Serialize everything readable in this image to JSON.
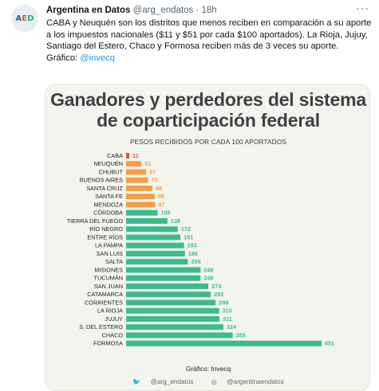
{
  "tweet": {
    "author_name": "Argentina en Datos",
    "author_handle": "@arg_endatos",
    "separator": "·",
    "time": "18h",
    "more_icon": "more-dots-icon",
    "text_body": "CABA y Neuquén son los distritos que menos reciben en comparación a su aporte a los impuestos nacionales ($11 y $51 por cada $100 aportados). La Rioja, Jujuy, Santiago del Estero, Chaco y Formosa reciben más de 3 veces su aporte.",
    "text_credit_prefix": "Gráfico: ",
    "text_credit_mention": "@invecq"
  },
  "avatar": {
    "logo_a": "A",
    "logo_e": "E",
    "logo_d": "D"
  },
  "colors": {
    "red": "#e8533a",
    "orange": "#f0a04b",
    "green": "#3cbb8f",
    "link": "#1d9bf0"
  },
  "card": {
    "title_line1": "Ganadores y perdedores del sistema",
    "title_line2": "de coparticipación federal",
    "subtitle": "PESOS RECIBIDOS POR CADA 100 APORTADOS",
    "source": "Gráfico: Invecq",
    "social_twitter": "@arg_endatos",
    "social_instagram": "@argentinaendatos"
  },
  "chart_data": {
    "type": "bar",
    "orientation": "horizontal",
    "title": "Ganadores y perdedores del sistema de coparticipación federal",
    "subtitle": "PESOS RECIBIDOS POR CADA 100 APORTADOS",
    "categories": [
      "CABA",
      "NEUQUÉN",
      "CHUBUT",
      "BUENOS AIRES",
      "SANTA CRUZ",
      "SANTA FE",
      "MENDOZA",
      "CÓRDOBA",
      "TIERRA DEL FUEGO",
      "RÍO NEGRO",
      "ENTRE RÍOS",
      "LA PAMPA",
      "SAN LUIS",
      "SALTA",
      "MISIONES",
      "TUCUMÁN",
      "SAN JUAN",
      "CATAMARCA",
      "CORRIENTES",
      "LA RIOJA",
      "JUJUY",
      "S. DEL ESTERO",
      "CHACO",
      "FORMOSA"
    ],
    "values": [
      11,
      51,
      67,
      73,
      88,
      95,
      97,
      105,
      138,
      172,
      181,
      193,
      196,
      206,
      248,
      248,
      274,
      282,
      298,
      310,
      311,
      324,
      355,
      651
    ],
    "bar_colors": [
      "#e8533a",
      "#f0a04b",
      "#f0a04b",
      "#f0a04b",
      "#f0a04b",
      "#f0a04b",
      "#f0a04b",
      "#3cbb8f",
      "#3cbb8f",
      "#3cbb8f",
      "#3cbb8f",
      "#3cbb8f",
      "#3cbb8f",
      "#3cbb8f",
      "#3cbb8f",
      "#3cbb8f",
      "#3cbb8f",
      "#3cbb8f",
      "#3cbb8f",
      "#3cbb8f",
      "#3cbb8f",
      "#3cbb8f",
      "#3cbb8f",
      "#3cbb8f"
    ],
    "value_label_colors": [
      "#e8533a",
      "#f0a04b",
      "#f0a04b",
      "#f0a04b",
      "#f0a04b",
      "#f0a04b",
      "#f0a04b",
      "#3cbb8f",
      "#3cbb8f",
      "#3cbb8f",
      "#3cbb8f",
      "#3cbb8f",
      "#3cbb8f",
      "#3cbb8f",
      "#3cbb8f",
      "#3cbb8f",
      "#3cbb8f",
      "#3cbb8f",
      "#3cbb8f",
      "#3cbb8f",
      "#3cbb8f",
      "#3cbb8f",
      "#3cbb8f",
      "#3cbb8f"
    ],
    "xlim": [
      0,
      651
    ],
    "grid": false,
    "legend": "none"
  }
}
